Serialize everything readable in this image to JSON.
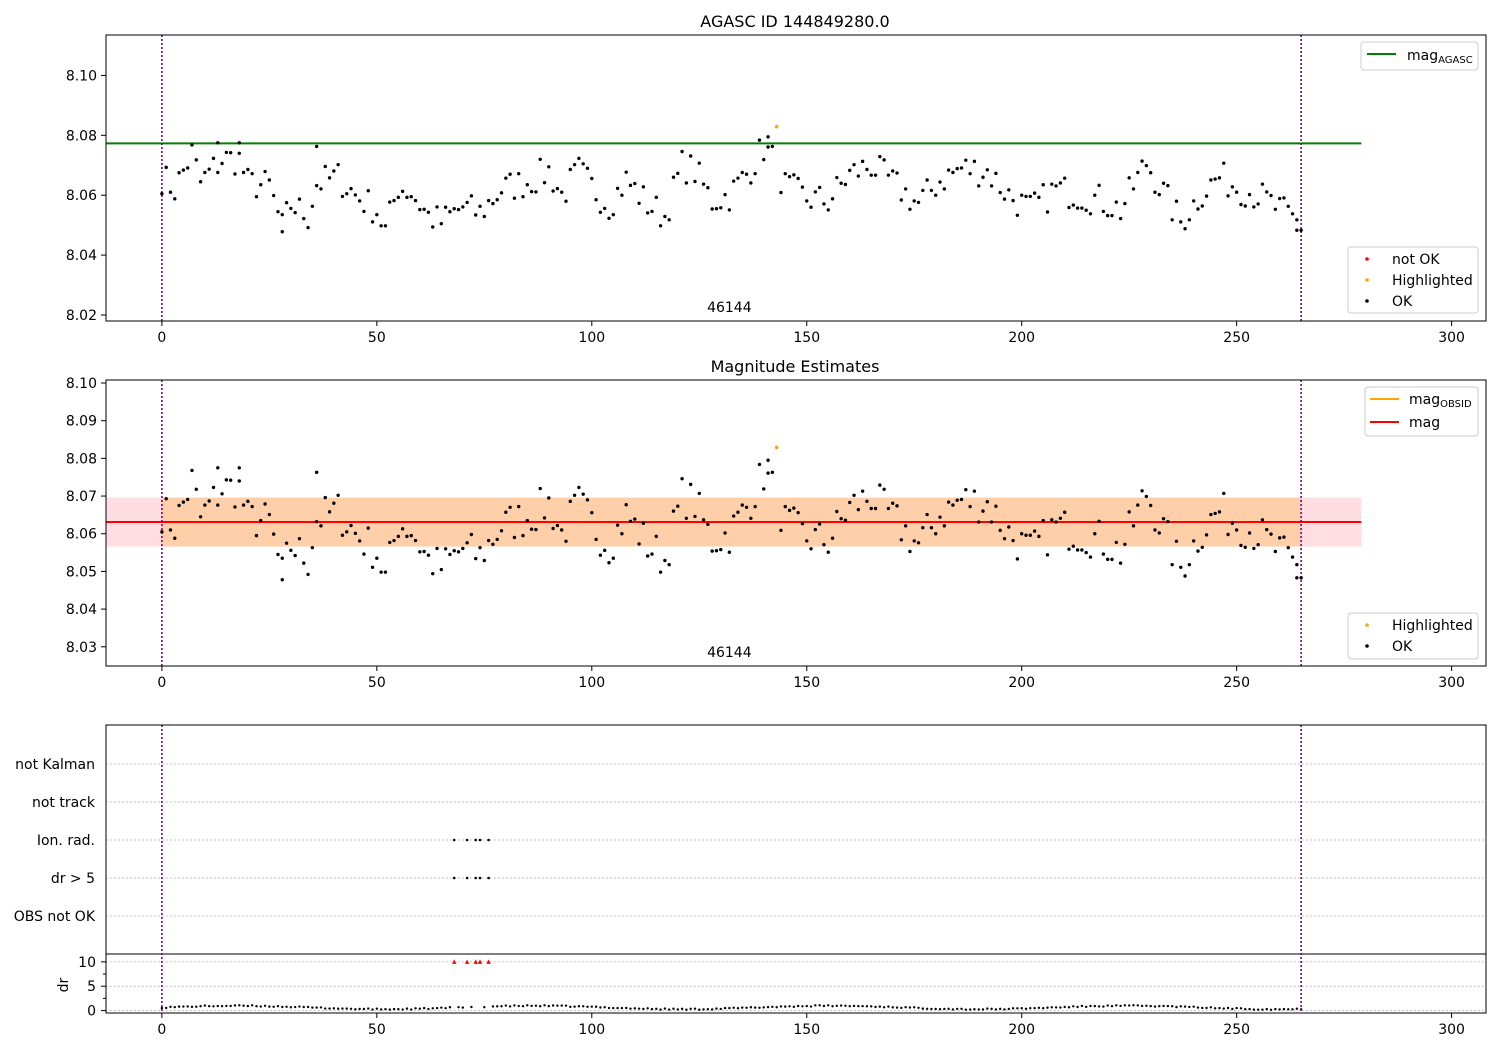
{
  "chart_data": [
    {
      "type": "scatter",
      "title": "AGASC ID 144849280.0",
      "xlim": [
        -13,
        308
      ],
      "ylim": [
        8.018,
        8.1135
      ],
      "x_ticks": [
        0,
        50,
        100,
        150,
        200,
        250,
        300
      ],
      "y_ticks": [
        8.02,
        8.04,
        8.06,
        8.08,
        8.1
      ],
      "y_tick_labels": [
        "8.02",
        "8.04",
        "8.06",
        "8.08",
        "8.10"
      ],
      "vertical_markers": [
        0,
        265
      ],
      "obsid_label": {
        "text": "46144",
        "x": 132
      },
      "hline": {
        "name_main": "mag",
        "name_sub": "AGASC",
        "value": 8.0773,
        "x_end": 279,
        "color": "#008000"
      },
      "legend_top": [
        {
          "label_main": "mag",
          "label_sub": "AGASC",
          "color": "#008000"
        }
      ],
      "legend_bottom": [
        {
          "label": "not OK",
          "color": "#ff0000"
        },
        {
          "label": "Highlighted",
          "color": "#ffa500"
        },
        {
          "label": "OK",
          "color": "#000000"
        }
      ],
      "highlighted": [
        {
          "x": 143,
          "y": 8.0829
        }
      ]
    },
    {
      "type": "scatter",
      "title": "Magnitude Estimates",
      "xlim": [
        -13,
        308
      ],
      "ylim": [
        8.0249,
        8.1008
      ],
      "x_ticks": [
        0,
        50,
        100,
        150,
        200,
        250,
        300
      ],
      "y_ticks": [
        8.03,
        8.04,
        8.05,
        8.06,
        8.07,
        8.08,
        8.09,
        8.1
      ],
      "y_tick_labels": [
        "8.03",
        "8.04",
        "8.05",
        "8.06",
        "8.07",
        "8.08",
        "8.09",
        "8.10"
      ],
      "vertical_markers": [
        0,
        265
      ],
      "obsid_label": {
        "text": "46144",
        "x": 132
      },
      "mag_line": {
        "value": 8.0631,
        "color": "#ff0000"
      },
      "mag_band": [
        8.0566,
        8.0696
      ],
      "x_end": 279,
      "legend_top": [
        {
          "label_main": "mag",
          "label_sub": "OBSID",
          "color": "#ffa500"
        },
        {
          "label_main": "mag",
          "label_sub": "",
          "color": "#ff0000"
        }
      ],
      "legend_bottom": [
        {
          "label": "Highlighted",
          "color": "#ffa500"
        },
        {
          "label": "OK",
          "color": "#000000"
        }
      ],
      "highlighted": [
        {
          "x": 143,
          "y": 8.0829
        }
      ]
    },
    {
      "type": "scatter",
      "title": "",
      "xlim": [
        -13,
        308
      ],
      "x_ticks": [
        0,
        50,
        100,
        150,
        200,
        250,
        300
      ],
      "categories": [
        "not Kalman",
        "not track",
        "Ion. rad.",
        "dr > 5",
        "OBS not OK"
      ],
      "flag_points": {
        "Ion. rad.": [
          68,
          71,
          73,
          74,
          76
        ],
        "dr > 5": [
          68,
          71,
          73,
          74,
          76
        ]
      },
      "vertical_markers": [
        0,
        265
      ],
      "dr": {
        "ylabel": "dr",
        "ylim": [
          -0.5,
          11
        ],
        "y_ticks": [
          0,
          5,
          10
        ],
        "y_tick_labels": [
          "0",
          "5",
          "10"
        ],
        "clipped_points": [
          68,
          71,
          73,
          74,
          76
        ],
        "clip_value": 10
      }
    }
  ]
}
